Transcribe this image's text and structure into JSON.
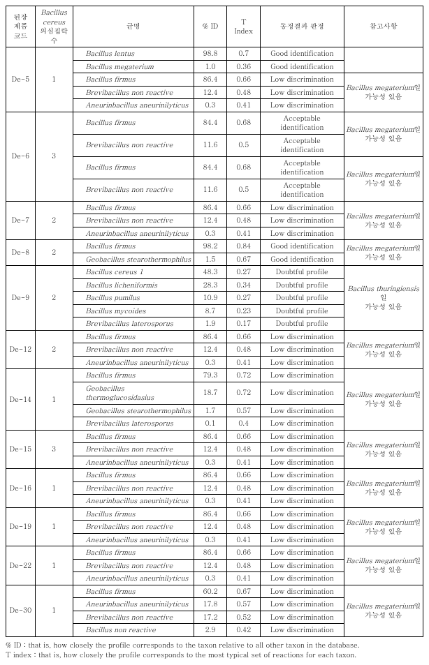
{
  "headers": {
    "c1": "된장\n제품\n코드",
    "c2_italic": "Bacillus\ncereus",
    "c2_tail": "의심집락 수",
    "c3": "균명",
    "c4": "% ID",
    "c5": "T\nIndex",
    "c6": "동정결과 판정",
    "c7": "참고사항"
  },
  "ref_megaterium_il": "Bacillus megaterium",
  "ref_megaterium_ko": "일",
  "ref_prob": "가능성 있음",
  "ref_thuring_il": "Bacillus thuringiensis",
  "ref_thuring_ko": "일",
  "groups": [
    {
      "code": "De-5",
      "count": "1",
      "subrows": [
        {
          "rows": [
            {
              "sp": "Bacillus lentus",
              "id": "98.8",
              "t": "0.7",
              "judg": "Good identification"
            },
            {
              "sp": "Bacillus megaterium",
              "id": "1.0",
              "t": "0.36",
              "judg": "Good identification"
            }
          ],
          "ref": null
        },
        {
          "rows": [
            {
              "sp": "Bacillus firmus",
              "id": "86.4",
              "t": "0.66",
              "judg": "Low discrimination"
            },
            {
              "sp": "Brevibacillus non reactive",
              "id": "12.4",
              "t": "0.48",
              "judg": "Low discrimination"
            },
            {
              "sp": "Aneurinbacillus aneurinilyticus",
              "id": "0.3",
              "t": "0.41",
              "judg": "Low discrimination"
            }
          ],
          "ref": "meg"
        }
      ]
    },
    {
      "code": "De-6",
      "count": "3",
      "subrows": [
        {
          "rows": [
            {
              "sp": "Bacillus firmus",
              "id": "84.4",
              "t": "0.68",
              "judg": "Acceptable\nidentification"
            },
            {
              "sp": "Brevibacillus non reactive",
              "id": "11.6",
              "t": "0.5",
              "judg": "Acceptable\nidentification"
            }
          ],
          "ref": "meg"
        },
        {
          "rows": [
            {
              "sp": "Bacillus firmus",
              "id": "84.4",
              "t": "0.68",
              "judg": "Acceptable\nidentification"
            },
            {
              "sp": "Brevibacillus non reactive",
              "id": "11.6",
              "t": "0.5",
              "judg": "Acceptable\nidentification"
            }
          ],
          "ref": "meg"
        }
      ]
    },
    {
      "code": "De-7",
      "count": "2",
      "subrows": [
        {
          "rows": [
            {
              "sp": "Bacillus firmus",
              "id": "86.4",
              "t": "0.66",
              "judg": "Low discrimination"
            },
            {
              "sp": "Brevibacillus non reactive",
              "id": "12.4",
              "t": "0.48",
              "judg": "Low discrimination"
            },
            {
              "sp": "Aneurinbacillus aneurinilyticus",
              "id": "0.3",
              "t": "0.41",
              "judg": "Low discrimination"
            }
          ],
          "ref": "meg"
        }
      ]
    },
    {
      "code": "De-8",
      "count": "2",
      "subrows": [
        {
          "rows": [
            {
              "sp": "Bacillus firmus",
              "id": "98.2",
              "t": "0.84",
              "judg": "Good identification"
            },
            {
              "sp": "Geobacillus stearothermophilus",
              "id": "1.5",
              "t": "0.67",
              "judg": "Good identification"
            }
          ],
          "ref": "meg"
        }
      ]
    },
    {
      "code": "De-9",
      "count": "2",
      "subrows": [
        {
          "rows": [
            {
              "sp": "Bacillus cereus 1",
              "id": "48.3",
              "t": "0.27",
              "judg": "Doubtful profile"
            },
            {
              "sp": "Bacillus licheniformis",
              "id": "28.3",
              "t": "0.34",
              "judg": "Doubtful profile"
            },
            {
              "sp": "Bacillus pumilus",
              "id": "10.9",
              "t": "0.27",
              "judg": "Doubtful profile"
            },
            {
              "sp": "Bacillus mycoides",
              "id": "8.7",
              "t": "0.23",
              "judg": "Doubtful profile"
            },
            {
              "sp": "Brevibacillus laterosporus",
              "id": "1.9",
              "t": "0.17",
              "judg": "Doubtful profile"
            }
          ],
          "ref": "thu"
        }
      ]
    },
    {
      "code": "De-12",
      "count": "2",
      "subrows": [
        {
          "rows": [
            {
              "sp": "Bacillus firmus",
              "id": "86.4",
              "t": "0.66",
              "judg": "Low discrimination"
            },
            {
              "sp": "Brevibacillus non reactive",
              "id": "12.4",
              "t": "0.48",
              "judg": "Low discrimination"
            },
            {
              "sp": "Aneurinbacillus aneurinilyticus",
              "id": "0.3",
              "t": "0.41",
              "judg": "Low discrimination"
            }
          ],
          "ref": "meg"
        }
      ]
    },
    {
      "code": "De-14",
      "count": "1",
      "subrows": [
        {
          "rows": [
            {
              "sp": "Bacillus firmus",
              "id": "79.3",
              "t": "0.72",
              "judg": "Low discrimination"
            },
            {
              "sp": "Geobacillus thermoglucosidasius",
              "id": "18.7",
              "t": "0.72",
              "judg": "Low discrimination"
            },
            {
              "sp": "Geobacillus stearothermophilus",
              "id": "1.7",
              "t": "0.57",
              "judg": "Low discrimination"
            },
            {
              "sp": "Brevibacillus laterosporus",
              "id": "0.1",
              "t": "0.4",
              "judg": "Low discrimination"
            }
          ],
          "ref": "meg"
        }
      ]
    },
    {
      "code": "De-15",
      "count": "3",
      "subrows": [
        {
          "rows": [
            {
              "sp": "Bacillus firmus",
              "id": "86.4",
              "t": "0.66",
              "judg": "Low discrimination"
            },
            {
              "sp": "Brevibacillus non reactive",
              "id": "12.4",
              "t": "0.48",
              "judg": "Low discrimination"
            },
            {
              "sp": "Aneurinbacillus aneurinilyticus",
              "id": "0.3",
              "t": "0.41",
              "judg": "Low discrimination"
            }
          ],
          "ref": "meg"
        }
      ]
    },
    {
      "code": "De-16",
      "count": "1",
      "subrows": [
        {
          "rows": [
            {
              "sp": "Bacillus firmus",
              "id": "86.4",
              "t": "0.66",
              "judg": "Low discrimination"
            },
            {
              "sp": "Brevibacillus non reactive",
              "id": "12.4",
              "t": "0.48",
              "judg": "Low discrimination"
            },
            {
              "sp": "Aneurinbacillus aneurinilyticus",
              "id": "0.3",
              "t": "0.41",
              "judg": "Low discrimination"
            }
          ],
          "ref": "meg"
        }
      ]
    },
    {
      "code": "De-19",
      "count": "1",
      "subrows": [
        {
          "rows": [
            {
              "sp": "Bacillus firmus",
              "id": "86.4",
              "t": "0.66",
              "judg": "Low discrimination"
            },
            {
              "sp": "Brevibacillus non reactive",
              "id": "12.4",
              "t": "0.48",
              "judg": "Low discrimination"
            },
            {
              "sp": "Aneurinbacillus aneurinilyticus",
              "id": "0.3",
              "t": "0.41",
              "judg": "Low discrimination"
            }
          ],
          "ref": "meg"
        }
      ]
    },
    {
      "code": "De-22",
      "count": "1",
      "subrows": [
        {
          "rows": [
            {
              "sp": "Bacillus firmus",
              "id": "86.4",
              "t": "0.66",
              "judg": "Low discrimination"
            },
            {
              "sp": "Brevibacillus non reactive",
              "id": "12.4",
              "t": "0.48",
              "judg": "Low discrimination"
            },
            {
              "sp": "Aneurinbacillus aneurinilyticus",
              "id": "0.3",
              "t": "0.41",
              "judg": "Low discrimination"
            }
          ],
          "ref": "meg"
        }
      ]
    },
    {
      "code": "De-30",
      "count": "1",
      "subrows": [
        {
          "rows": [
            {
              "sp": "Bacillus firmus",
              "id": "60.2",
              "t": "0.67",
              "judg": "Low discrimination"
            },
            {
              "sp": "Aneurinbacillus aneurinilyticus",
              "id": "17.8",
              "t": "0.57",
              "judg": "Low discrimination"
            },
            {
              "sp": "Brevibacillus non reactive",
              "id": "17.2",
              "t": "0.52",
              "judg": "Low discrimination"
            },
            {
              "sp": "Bacillus non reactive",
              "id": "2.9",
              "t": "0.42",
              "judg": "Low discrimination"
            }
          ],
          "ref": "meg"
        }
      ]
    }
  ],
  "footnotes": {
    "f1": "% ID : that is, how closely the profile corresponds to the taxon relative to all other taxon in the database.",
    "f2": "T index : that is, how closely the profile corresponds to the most typical set of reactions for each taxon."
  }
}
